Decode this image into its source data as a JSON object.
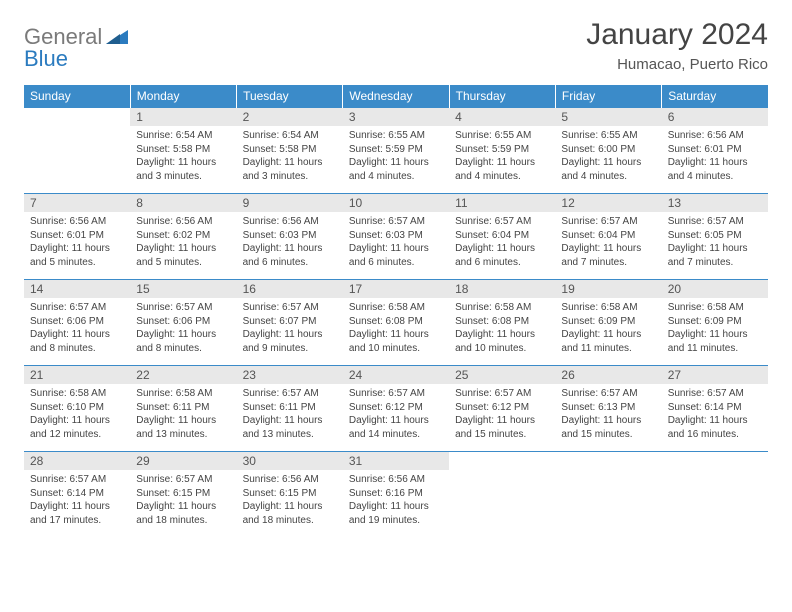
{
  "logo": {
    "word1": "General",
    "word2": "Blue"
  },
  "title": "January 2024",
  "subtitle": "Humacao, Puerto Rico",
  "weekdays": [
    "Sunday",
    "Monday",
    "Tuesday",
    "Wednesday",
    "Thursday",
    "Friday",
    "Saturday"
  ],
  "colors": {
    "header_bg": "#3b8bc9",
    "header_text": "#ffffff",
    "daynum_bg": "#e8e8e8",
    "border": "#3b8bc9",
    "logo_gray": "#7a7a7a",
    "logo_blue": "#2b7bbf"
  },
  "weeks": [
    [
      {
        "n": "",
        "empty": true
      },
      {
        "n": "1",
        "sr": "Sunrise: 6:54 AM",
        "ss": "Sunset: 5:58 PM",
        "dl1": "Daylight: 11 hours",
        "dl2": "and 3 minutes."
      },
      {
        "n": "2",
        "sr": "Sunrise: 6:54 AM",
        "ss": "Sunset: 5:58 PM",
        "dl1": "Daylight: 11 hours",
        "dl2": "and 3 minutes."
      },
      {
        "n": "3",
        "sr": "Sunrise: 6:55 AM",
        "ss": "Sunset: 5:59 PM",
        "dl1": "Daylight: 11 hours",
        "dl2": "and 4 minutes."
      },
      {
        "n": "4",
        "sr": "Sunrise: 6:55 AM",
        "ss": "Sunset: 5:59 PM",
        "dl1": "Daylight: 11 hours",
        "dl2": "and 4 minutes."
      },
      {
        "n": "5",
        "sr": "Sunrise: 6:55 AM",
        "ss": "Sunset: 6:00 PM",
        "dl1": "Daylight: 11 hours",
        "dl2": "and 4 minutes."
      },
      {
        "n": "6",
        "sr": "Sunrise: 6:56 AM",
        "ss": "Sunset: 6:01 PM",
        "dl1": "Daylight: 11 hours",
        "dl2": "and 4 minutes."
      }
    ],
    [
      {
        "n": "7",
        "sr": "Sunrise: 6:56 AM",
        "ss": "Sunset: 6:01 PM",
        "dl1": "Daylight: 11 hours",
        "dl2": "and 5 minutes."
      },
      {
        "n": "8",
        "sr": "Sunrise: 6:56 AM",
        "ss": "Sunset: 6:02 PM",
        "dl1": "Daylight: 11 hours",
        "dl2": "and 5 minutes."
      },
      {
        "n": "9",
        "sr": "Sunrise: 6:56 AM",
        "ss": "Sunset: 6:03 PM",
        "dl1": "Daylight: 11 hours",
        "dl2": "and 6 minutes."
      },
      {
        "n": "10",
        "sr": "Sunrise: 6:57 AM",
        "ss": "Sunset: 6:03 PM",
        "dl1": "Daylight: 11 hours",
        "dl2": "and 6 minutes."
      },
      {
        "n": "11",
        "sr": "Sunrise: 6:57 AM",
        "ss": "Sunset: 6:04 PM",
        "dl1": "Daylight: 11 hours",
        "dl2": "and 6 minutes."
      },
      {
        "n": "12",
        "sr": "Sunrise: 6:57 AM",
        "ss": "Sunset: 6:04 PM",
        "dl1": "Daylight: 11 hours",
        "dl2": "and 7 minutes."
      },
      {
        "n": "13",
        "sr": "Sunrise: 6:57 AM",
        "ss": "Sunset: 6:05 PM",
        "dl1": "Daylight: 11 hours",
        "dl2": "and 7 minutes."
      }
    ],
    [
      {
        "n": "14",
        "sr": "Sunrise: 6:57 AM",
        "ss": "Sunset: 6:06 PM",
        "dl1": "Daylight: 11 hours",
        "dl2": "and 8 minutes."
      },
      {
        "n": "15",
        "sr": "Sunrise: 6:57 AM",
        "ss": "Sunset: 6:06 PM",
        "dl1": "Daylight: 11 hours",
        "dl2": "and 8 minutes."
      },
      {
        "n": "16",
        "sr": "Sunrise: 6:57 AM",
        "ss": "Sunset: 6:07 PM",
        "dl1": "Daylight: 11 hours",
        "dl2": "and 9 minutes."
      },
      {
        "n": "17",
        "sr": "Sunrise: 6:58 AM",
        "ss": "Sunset: 6:08 PM",
        "dl1": "Daylight: 11 hours",
        "dl2": "and 10 minutes."
      },
      {
        "n": "18",
        "sr": "Sunrise: 6:58 AM",
        "ss": "Sunset: 6:08 PM",
        "dl1": "Daylight: 11 hours",
        "dl2": "and 10 minutes."
      },
      {
        "n": "19",
        "sr": "Sunrise: 6:58 AM",
        "ss": "Sunset: 6:09 PM",
        "dl1": "Daylight: 11 hours",
        "dl2": "and 11 minutes."
      },
      {
        "n": "20",
        "sr": "Sunrise: 6:58 AM",
        "ss": "Sunset: 6:09 PM",
        "dl1": "Daylight: 11 hours",
        "dl2": "and 11 minutes."
      }
    ],
    [
      {
        "n": "21",
        "sr": "Sunrise: 6:58 AM",
        "ss": "Sunset: 6:10 PM",
        "dl1": "Daylight: 11 hours",
        "dl2": "and 12 minutes."
      },
      {
        "n": "22",
        "sr": "Sunrise: 6:58 AM",
        "ss": "Sunset: 6:11 PM",
        "dl1": "Daylight: 11 hours",
        "dl2": "and 13 minutes."
      },
      {
        "n": "23",
        "sr": "Sunrise: 6:57 AM",
        "ss": "Sunset: 6:11 PM",
        "dl1": "Daylight: 11 hours",
        "dl2": "and 13 minutes."
      },
      {
        "n": "24",
        "sr": "Sunrise: 6:57 AM",
        "ss": "Sunset: 6:12 PM",
        "dl1": "Daylight: 11 hours",
        "dl2": "and 14 minutes."
      },
      {
        "n": "25",
        "sr": "Sunrise: 6:57 AM",
        "ss": "Sunset: 6:12 PM",
        "dl1": "Daylight: 11 hours",
        "dl2": "and 15 minutes."
      },
      {
        "n": "26",
        "sr": "Sunrise: 6:57 AM",
        "ss": "Sunset: 6:13 PM",
        "dl1": "Daylight: 11 hours",
        "dl2": "and 15 minutes."
      },
      {
        "n": "27",
        "sr": "Sunrise: 6:57 AM",
        "ss": "Sunset: 6:14 PM",
        "dl1": "Daylight: 11 hours",
        "dl2": "and 16 minutes."
      }
    ],
    [
      {
        "n": "28",
        "sr": "Sunrise: 6:57 AM",
        "ss": "Sunset: 6:14 PM",
        "dl1": "Daylight: 11 hours",
        "dl2": "and 17 minutes."
      },
      {
        "n": "29",
        "sr": "Sunrise: 6:57 AM",
        "ss": "Sunset: 6:15 PM",
        "dl1": "Daylight: 11 hours",
        "dl2": "and 18 minutes."
      },
      {
        "n": "30",
        "sr": "Sunrise: 6:56 AM",
        "ss": "Sunset: 6:15 PM",
        "dl1": "Daylight: 11 hours",
        "dl2": "and 18 minutes."
      },
      {
        "n": "31",
        "sr": "Sunrise: 6:56 AM",
        "ss": "Sunset: 6:16 PM",
        "dl1": "Daylight: 11 hours",
        "dl2": "and 19 minutes."
      },
      {
        "n": "",
        "empty": true
      },
      {
        "n": "",
        "empty": true
      },
      {
        "n": "",
        "empty": true
      }
    ]
  ]
}
